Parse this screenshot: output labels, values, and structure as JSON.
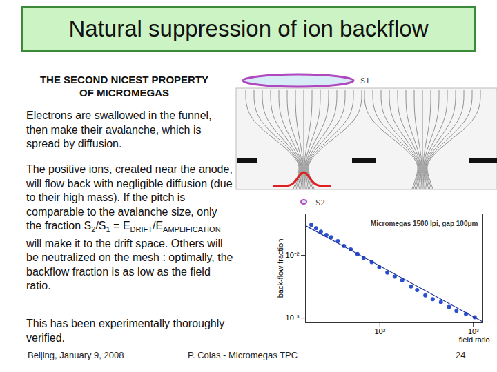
{
  "slide": {
    "title": "Natural suppression of ion backflow",
    "heading": [
      "THE SECOND NICEST PROPERTY",
      "OF MICROMEGAS"
    ],
    "paragraphs": [
      [
        {
          "text": "Electrons are swallowed in the funnel, then make their avalanche, which is spread by diffusion."
        }
      ],
      [
        {
          "text": "The positive ions, created near the anode, will flow back with negligible diffusion (due to their high mass). If the pitch is comparable to the avalanche size, only the fraction S"
        },
        {
          "text": "2",
          "sub": true
        },
        {
          "text": "/S"
        },
        {
          "text": "1",
          "sub": true
        },
        {
          "text": " = E"
        },
        {
          "text": "DRIFT",
          "sub": true
        },
        {
          "text": "/E"
        },
        {
          "text": "AMPLIFICATION",
          "sub": true
        },
        {
          "text": " will make it to the drift space. Others will be neutralized on the mesh : optimally, the backflow fraction is as low as the field ratio."
        }
      ],
      [
        {
          "text": "This has been experimentally thoroughly verified."
        }
      ]
    ],
    "diagram": {
      "upper_label": "S1",
      "lower_label": "S2"
    },
    "footer": {
      "left": "Beijing, January 9, 2008",
      "center": "P. Colas - Micromegas TPC",
      "page": 24
    }
  },
  "chart_data": {
    "type": "scatter",
    "annotation": "Micromegas 1500 lpi, gap 100μm",
    "xlabel": "field ratio",
    "ylabel": "back-flow fraction",
    "log": true,
    "grid": false,
    "xlim": [
      16,
      1240
    ],
    "ylim": [
      0.00084,
      0.046
    ],
    "xticks": [
      {
        "value": 100,
        "label": "10²"
      },
      {
        "value": 1000,
        "label": "10³"
      }
    ],
    "yticks": [
      {
        "value": 0.01,
        "label": "10⁻²"
      },
      {
        "value": 0.001,
        "label": "10⁻³"
      }
    ],
    "series": [
      {
        "type": "scatter",
        "color": "#2a4fd0",
        "marker": "circle",
        "x": [
          18.5,
          20.8,
          23.4,
          26.8,
          30.1,
          35.5,
          41.3,
          48.8,
          57.6,
          67.0,
          81.8,
          98.4,
          120,
          144,
          173,
          215,
          250,
          306,
          367,
          449,
          548,
          659,
          832,
          1033
        ],
        "values": [
          0.0308,
          0.0272,
          0.024,
          0.0212,
          0.0196,
          0.0169,
          0.0142,
          0.0125,
          0.0105,
          0.0091,
          0.0078,
          0.0065,
          0.0053,
          0.0046,
          0.004,
          0.0032,
          0.0028,
          0.0023,
          0.002,
          0.0018,
          0.0015,
          0.0013,
          0.00116,
          0.00103
        ]
      },
      {
        "type": "line",
        "color": "#1a2f9a",
        "line_style": "solid",
        "x": [
          16.2,
          1242
        ],
        "values": [
          0.0296,
          0.00088
        ]
      }
    ]
  }
}
